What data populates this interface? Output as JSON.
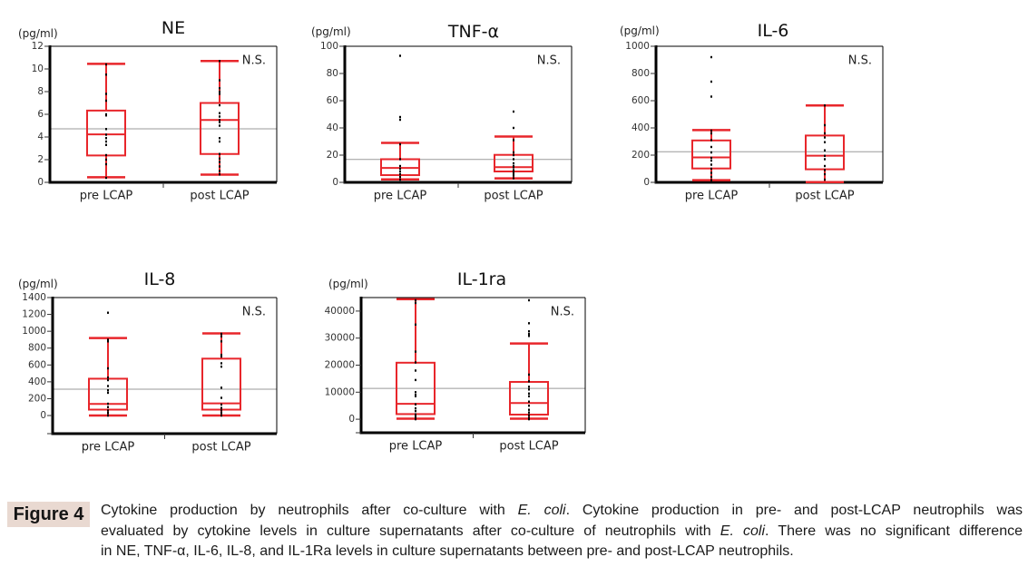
{
  "colors": {
    "box": "#e8262b",
    "points": "#000000",
    "reference_line": "#9a9a9a",
    "axis": "#000000",
    "figure_label_bg": "#e9d9d1"
  },
  "chart_data": [
    {
      "type": "box",
      "title": "NE",
      "ylabel": "(pg/ml)",
      "xlabel": "",
      "ylim": [
        0,
        12
      ],
      "yticks": [
        0,
        2,
        4,
        6,
        8,
        10,
        12
      ],
      "ytick_labels": [
        "0",
        "2",
        "4",
        "6",
        "8",
        "10",
        "12"
      ],
      "categories": [
        "pre LCAP",
        "post LCAP"
      ],
      "series": [
        {
          "name": "pre LCAP",
          "whisker_low": 0.45,
          "q1": 2.37,
          "median": 4.23,
          "q3": 6.33,
          "whisker_high": 10.45,
          "points": [
            10.4,
            9.5,
            7.8,
            7.2,
            6.0,
            5.9,
            4.7,
            4.2,
            3.9,
            3.6,
            3.3,
            2.4,
            2.0,
            1.6,
            0.4
          ]
        },
        {
          "name": "post LCAP",
          "whisker_low": 0.68,
          "q1": 2.5,
          "median": 5.5,
          "q3": 7.0,
          "whisker_high": 10.7,
          "points": [
            10.7,
            9.0,
            8.3,
            8.0,
            7.8,
            6.8,
            6.1,
            5.8,
            5.5,
            5.3,
            5.0,
            3.9,
            3.6,
            2.5,
            2.1,
            1.8,
            1.4,
            1.0,
            0.7
          ]
        }
      ],
      "reference_line": 4.72,
      "annotation": "N.S.",
      "grid": false
    },
    {
      "type": "box",
      "title": "TNF-α",
      "ylabel": "(pg/ml)",
      "xlabel": "",
      "ylim": [
        0,
        100
      ],
      "yticks": [
        0,
        20,
        40,
        60,
        80,
        100
      ],
      "ytick_labels": [
        "0",
        "20",
        "40",
        "60",
        "80",
        "100"
      ],
      "categories": [
        "pre LCAP",
        "post LCAP"
      ],
      "series": [
        {
          "name": "pre LCAP",
          "whisker_low": 2.2,
          "q1": 5.3,
          "median": 10.6,
          "q3": 17.0,
          "whisker_high": 29.0,
          "points": [
            93,
            48,
            46,
            28,
            17,
            12,
            10,
            8,
            6,
            4,
            2
          ]
        },
        {
          "name": "post LCAP",
          "whisker_low": 2.9,
          "q1": 8.0,
          "median": 11.2,
          "q3": 20.2,
          "whisker_high": 33.7,
          "points": [
            52,
            40,
            31,
            22,
            20,
            17,
            14,
            12,
            11,
            9,
            8,
            7,
            6,
            5,
            3
          ]
        }
      ],
      "reference_line": 16.8,
      "annotation": "N.S.",
      "grid": false
    },
    {
      "type": "box",
      "title": "IL-6",
      "ylabel": "(pg/ml)",
      "xlabel": "",
      "ylim": [
        0,
        1000
      ],
      "yticks": [
        0,
        200,
        400,
        600,
        800,
        1000
      ],
      "ytick_labels": [
        "0",
        "200",
        "400",
        "600",
        "800",
        "1000"
      ],
      "categories": [
        "pre LCAP",
        "post LCAP"
      ],
      "series": [
        {
          "name": "pre LCAP",
          "whisker_low": 16,
          "q1": 102,
          "median": 183,
          "q3": 308,
          "whisker_high": 384,
          "points": [
            920,
            740,
            630,
            380,
            360,
            310,
            260,
            220,
            180,
            160,
            130,
            100,
            70,
            40,
            16
          ]
        },
        {
          "name": "post LCAP",
          "whisker_low": 2,
          "q1": 96,
          "median": 196,
          "q3": 344,
          "whisker_high": 565,
          "points": [
            565,
            420,
            360,
            330,
            295,
            235,
            195,
            170,
            120,
            90,
            60,
            20
          ]
        }
      ],
      "reference_line": 225,
      "annotation": "N.S.",
      "grid": false
    },
    {
      "type": "box",
      "title": "IL-8",
      "ylabel": "(pg/ml)",
      "xlabel": "",
      "ylim": [
        -215,
        1400
      ],
      "yticks": [
        0,
        200,
        400,
        600,
        800,
        1000,
        1200,
        1400
      ],
      "ytick_labels": [
        "0",
        "200",
        "400",
        "600",
        "800",
        "1000",
        "1200",
        "1400"
      ],
      "categories": [
        "pre LCAP",
        "post LCAP"
      ],
      "series": [
        {
          "name": "pre LCAP",
          "whisker_low": 0,
          "q1": 70,
          "median": 138,
          "q3": 437,
          "whisker_high": 920,
          "points": [
            1220,
            900,
            880,
            560,
            450,
            420,
            350,
            300,
            270,
            140,
            100,
            60,
            30,
            0
          ]
        },
        {
          "name": "post LCAP",
          "whisker_low": 0,
          "q1": 70,
          "median": 145,
          "q3": 675,
          "whisker_high": 975,
          "points": [
            970,
            940,
            880,
            720,
            700,
            620,
            580,
            330,
            210,
            130,
            90,
            60,
            30,
            0
          ]
        }
      ],
      "reference_line": 312,
      "annotation": "N.S.",
      "grid": false
    },
    {
      "type": "box",
      "title": "IL-1ra",
      "ylabel": "(pg/ml)",
      "xlabel": "",
      "ylim": [
        -5000,
        45000
      ],
      "yticks": [
        0,
        10000,
        20000,
        30000,
        40000
      ],
      "ytick_labels": [
        "0",
        "10000",
        "20000",
        "30000",
        "40000"
      ],
      "categories": [
        "pre LCAP",
        "post LCAP"
      ],
      "series": [
        {
          "name": "pre LCAP",
          "whisker_low": 200,
          "q1": 1900,
          "median": 5700,
          "q3": 20900,
          "whisker_high": 44400,
          "points": [
            44000,
            43000,
            35000,
            25000,
            21000,
            18000,
            14500,
            10000,
            9000,
            8500,
            5500,
            4000,
            3000,
            1800,
            1000,
            500,
            0
          ]
        },
        {
          "name": "post LCAP",
          "whisker_low": 200,
          "q1": 1700,
          "median": 6000,
          "q3": 13800,
          "whisker_high": 28000,
          "points": [
            44000,
            35500,
            32500,
            31500,
            30800,
            16500,
            14000,
            12000,
            11000,
            9500,
            8500,
            6500,
            5000,
            3500,
            2500,
            1500,
            500,
            0
          ]
        }
      ],
      "reference_line": 11400,
      "annotation": "N.S.",
      "grid": false
    }
  ],
  "figure": {
    "label": "Figure 4",
    "caption_lines": [
      [
        "Cytokine production by neutrophils after co-culture with ",
        "E. coli",
        ". Cytokine production in pre- and post-LCAP neutrophils was"
      ],
      [
        "evaluated by cytokine levels in culture supernatants after co-culture of neutrophils with ",
        "E. coli",
        ". There was no significant difference"
      ],
      [
        "in NE, TNF-α, IL-6, IL-8, and IL-1Ra levels in culture supernatants between pre- and post-LCAP neutrophils."
      ]
    ]
  }
}
